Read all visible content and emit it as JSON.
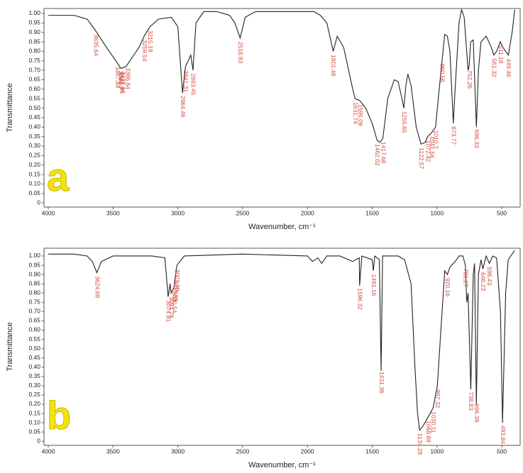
{
  "chart_data": [
    {
      "type": "line",
      "panel_label": "a",
      "xlabel": "Wavenumber, cm⁻¹",
      "ylabel": "Transmittance",
      "color": "#222222",
      "label_color": "#d24a3c",
      "xlim": [
        4033,
        358
      ],
      "ylim": [
        -0.022,
        1.026
      ],
      "xticks": [
        4000,
        3500,
        3000,
        2500,
        2000,
        1500,
        1000,
        500
      ],
      "yticks": [
        0,
        0.05,
        {
          "value": 0.1,
          "label": "0.10"
        },
        0.15,
        {
          "value": 0.2,
          "label": "0.20"
        },
        0.25,
        {
          "value": 0.3,
          "label": "0.30"
        },
        0.35,
        {
          "value": 0.4,
          "label": "0.40"
        },
        0.45,
        {
          "value": 0.5,
          "label": "0.50"
        },
        0.55,
        {
          "value": 0.6,
          "label": "0.60"
        },
        0.65,
        {
          "value": 0.7,
          "label": "0.70"
        },
        0.75,
        {
          "value": 0.8,
          "label": "0.80"
        },
        0.85,
        {
          "value": 0.9,
          "label": "0.90"
        },
        0.95,
        {
          "value": 1,
          "label": "1.00"
        }
      ],
      "x": [
        4000,
        3800,
        3700,
        3636,
        3550,
        3468,
        3440,
        3400,
        3300,
        3260,
        3215,
        3150,
        3050,
        3000,
        2964,
        2941,
        2920,
        2900,
        2883,
        2860,
        2800,
        2700,
        2650,
        2600,
        2560,
        2519,
        2480,
        2400,
        2000,
        1950,
        1900,
        1850,
        1801,
        1770,
        1720,
        1650,
        1632,
        1595,
        1550,
        1500,
        1462,
        1440,
        1418,
        1380,
        1330,
        1300,
        1270,
        1256,
        1240,
        1225,
        1200,
        1160,
        1123,
        1090,
        1072,
        1042,
        1011,
        990,
        961,
        940,
        920,
        900,
        874,
        860,
        830,
        810,
        790,
        760,
        752,
        740,
        720,
        696,
        680,
        660,
        620,
        580,
        561,
        540,
        511,
        490,
        470,
        449,
        420,
        400
      ],
      "values": [
        0.99,
        0.99,
        0.97,
        0.91,
        0.82,
        0.74,
        0.71,
        0.72,
        0.82,
        0.88,
        0.93,
        0.97,
        0.98,
        0.93,
        0.58,
        0.72,
        0.75,
        0.78,
        0.7,
        0.95,
        1.01,
        1.01,
        1.0,
        0.99,
        0.95,
        0.87,
        0.98,
        1.01,
        1.01,
        1.01,
        0.99,
        0.95,
        0.8,
        0.88,
        0.82,
        0.6,
        0.55,
        0.54,
        0.5,
        0.42,
        0.33,
        0.32,
        0.34,
        0.55,
        0.65,
        0.64,
        0.55,
        0.5,
        0.62,
        0.68,
        0.62,
        0.4,
        0.31,
        0.32,
        0.35,
        0.37,
        0.4,
        0.55,
        0.75,
        0.89,
        0.88,
        0.8,
        0.42,
        0.6,
        0.95,
        1.02,
        0.98,
        0.7,
        0.72,
        0.85,
        0.86,
        0.4,
        0.7,
        0.85,
        0.88,
        0.82,
        0.78,
        0.8,
        0.85,
        0.82,
        0.8,
        0.78,
        0.9,
        1.02
      ],
      "peaks": [
        3635.64,
        3467.84,
        3444.7,
        3435.05,
        3427.34,
        3386.84,
        3259.54,
        3215.18,
        2964.46,
        2941.31,
        2883.45,
        2518.93,
        1801.46,
        1631.74,
        1595.09,
        1462.02,
        1417.68,
        1255.65,
        1122.57,
        1072.42,
        1041.56,
        1010.7,
        960.56,
        873.77,
        752.26,
        696.33,
        561.32,
        511.18,
        449.46
      ]
    },
    {
      "type": "line",
      "panel_label": "b",
      "xlabel": "Wavenumber, cm⁻¹",
      "ylabel": "Transmittance",
      "color": "#222222",
      "label_color": "#d24a3c",
      "xlim": [
        4033,
        358
      ],
      "ylim": [
        -0.022,
        1.042
      ],
      "xticks": [
        4000,
        3500,
        3000,
        2500,
        2000,
        1500,
        1000,
        500
      ],
      "yticks": [
        0,
        0.05,
        {
          "value": 0.1,
          "label": "0.10"
        },
        0.15,
        {
          "value": 0.2,
          "label": "0.20"
        },
        0.25,
        {
          "value": 0.3,
          "label": "0.30"
        },
        0.35,
        {
          "value": 0.4,
          "label": "0.40"
        },
        0.45,
        {
          "value": 0.5,
          "label": "0.50"
        },
        0.55,
        {
          "value": 0.6,
          "label": "0.60"
        },
        0.65,
        {
          "value": 0.7,
          "label": "0.70"
        },
        0.75,
        {
          "value": 0.8,
          "label": "0.80"
        },
        0.85,
        {
          "value": 0.9,
          "label": "0.90"
        },
        0.95,
        {
          "value": 1,
          "label": "1.00"
        }
      ],
      "x": [
        4000,
        3800,
        3700,
        3660,
        3625,
        3590,
        3500,
        3200,
        3100,
        3075,
        3060,
        3052,
        3030,
        3019,
        3007,
        2950,
        2500,
        2000,
        1960,
        1920,
        1890,
        1850,
        1750,
        1650,
        1600,
        1597,
        1580,
        1500,
        1491,
        1480,
        1445,
        1431,
        1420,
        1300,
        1250,
        1200,
        1170,
        1150,
        1134,
        1110,
        1069,
        1030,
        997,
        970,
        940,
        920,
        900,
        860,
        830,
        800,
        781,
        770,
        760,
        739,
        720,
        710,
        696,
        680,
        660,
        646,
        620,
        596,
        570,
        540,
        510,
        494,
        470,
        450,
        420,
        400
      ],
      "values": [
        1.01,
        1.01,
        1.0,
        0.97,
        0.91,
        0.97,
        1.0,
        1.0,
        0.99,
        0.78,
        0.85,
        0.8,
        0.83,
        0.89,
        0.95,
        1.0,
        1.01,
        1.0,
        0.97,
        0.99,
        0.96,
        1.0,
        1.0,
        0.97,
        0.99,
        0.84,
        1.0,
        0.98,
        0.92,
        1.0,
        0.98,
        0.38,
        1.0,
        1.0,
        0.98,
        0.85,
        0.4,
        0.15,
        0.06,
        0.08,
        0.13,
        0.18,
        0.3,
        0.6,
        0.92,
        0.9,
        0.94,
        0.97,
        1.0,
        1.0,
        0.95,
        0.75,
        0.8,
        0.28,
        0.9,
        0.96,
        0.2,
        0.9,
        0.98,
        0.93,
        1.0,
        0.96,
        1.0,
        0.99,
        0.7,
        0.1,
        0.8,
        0.98,
        1.01,
        1.03
      ],
      "peaks": [
        3624.69,
        3074.91,
        3051.76,
        3030.54,
        3018.96,
        3007.39,
        1596.32,
        1491.16,
        1431.36,
        1134.28,
        1068.69,
        1030.11,
        997.32,
        920.16,
        781.27,
        738.83,
        696.39,
        646.23,
        596.43,
        493.84
      ]
    }
  ]
}
